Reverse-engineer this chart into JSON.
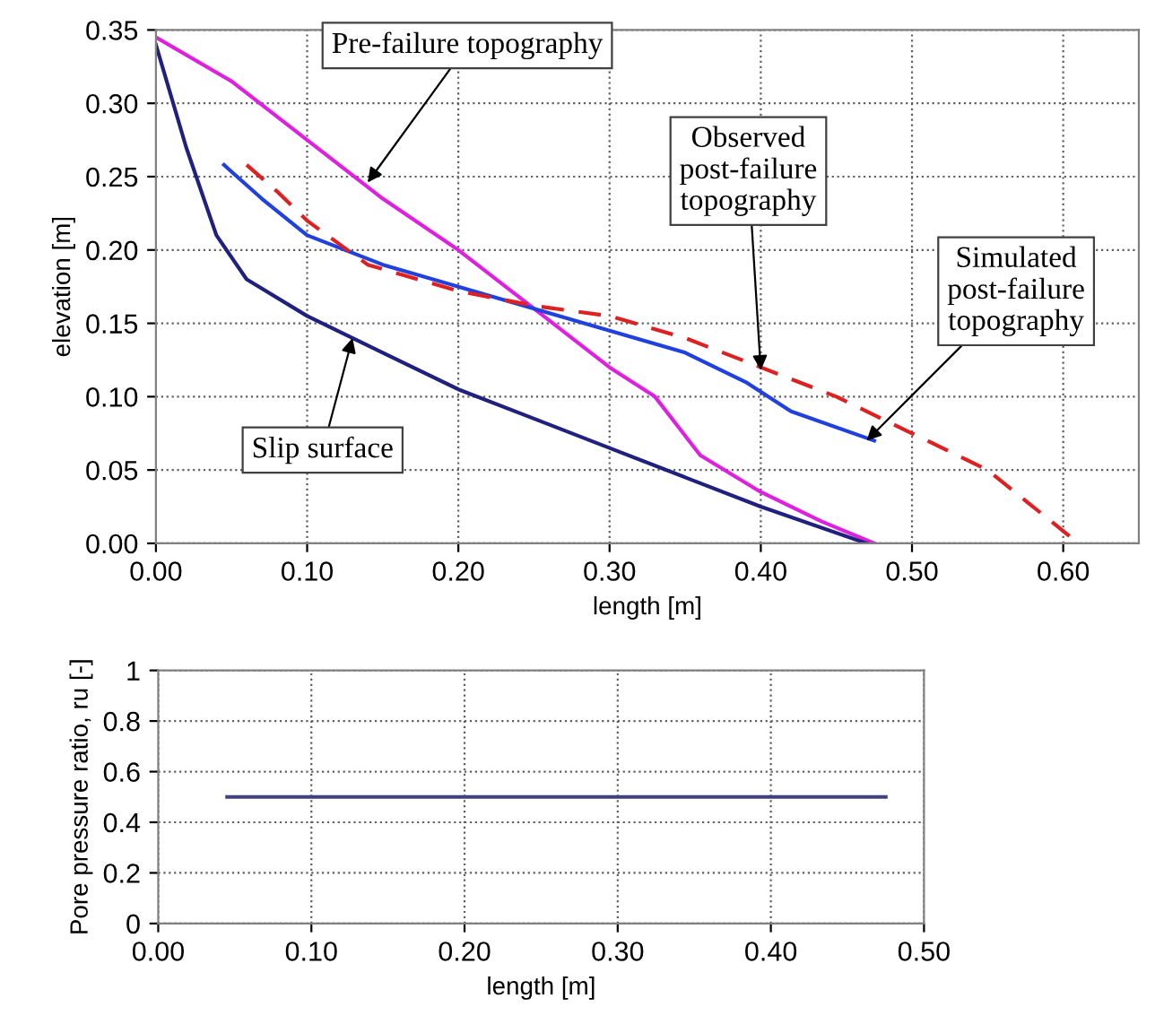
{
  "chart_data": [
    {
      "type": "line",
      "xlabel": "length [m]",
      "ylabel": "elevation [m]",
      "xlim": [
        0,
        0.65
      ],
      "ylim": [
        0,
        0.35
      ],
      "xticks": [
        {
          "value": 0,
          "label": "0.00"
        },
        {
          "value": 0.1,
          "label": "0.10"
        },
        {
          "value": 0.2,
          "label": "0.20"
        },
        {
          "value": 0.3,
          "label": "0.30"
        },
        {
          "value": 0.4,
          "label": "0.40"
        },
        {
          "value": 0.5,
          "label": "0.50"
        },
        {
          "value": 0.6,
          "label": "0.60"
        }
      ],
      "yticks": [
        {
          "value": 0,
          "label": "0.00"
        },
        0.05,
        {
          "value": 0.1,
          "label": "0.10"
        },
        0.15,
        {
          "value": 0.2,
          "label": "0.20"
        },
        0.25,
        {
          "value": 0.3,
          "label": "0.30"
        },
        0.35
      ],
      "grid": true,
      "marker": "none",
      "series": [
        {
          "color": "#e020e0",
          "line_style": "solid",
          "x": [
            0,
            0.05,
            0.1,
            0.15,
            0.2,
            0.25,
            0.3,
            0.33,
            0.36,
            0.4,
            0.44,
            0.475
          ],
          "values": [
            0.345,
            0.315,
            0.275,
            0.235,
            0.2,
            0.16,
            0.12,
            0.1,
            0.06,
            0.035,
            0.015,
            0
          ]
        },
        {
          "color": "#202080",
          "line_style": "solid",
          "x": [
            0,
            0.02,
            0.04,
            0.06,
            0.1,
            0.15,
            0.2,
            0.25,
            0.3,
            0.35,
            0.4,
            0.47
          ],
          "values": [
            0.34,
            0.27,
            0.21,
            0.18,
            0.155,
            0.13,
            0.105,
            0.085,
            0.065,
            0.045,
            0.025,
            0
          ]
        },
        {
          "color": "#2040e0",
          "line_style": "solid",
          "x": [
            0.045,
            0.07,
            0.1,
            0.15,
            0.2,
            0.25,
            0.3,
            0.35,
            0.39,
            0.42,
            0.475
          ],
          "values": [
            0.258,
            0.235,
            0.21,
            0.19,
            0.175,
            0.16,
            0.145,
            0.13,
            0.11,
            0.09,
            0.07
          ]
        },
        {
          "color": "#e02020",
          "line_style": "dashed",
          "x": [
            0.06,
            0.08,
            0.1,
            0.14,
            0.2,
            0.25,
            0.3,
            0.35,
            0.4,
            0.45,
            0.5,
            0.55,
            0.58,
            0.61
          ],
          "values": [
            0.258,
            0.24,
            0.22,
            0.19,
            0.172,
            0.162,
            0.155,
            0.14,
            0.12,
            0.1,
            0.075,
            0.05,
            0.025,
            0
          ]
        }
      ],
      "annotations": [
        {
          "text": "Pre-failure topography",
          "x": 0.14,
          "y": 0.246
        },
        {
          "text": "Observed\npost-failure\ntopography",
          "x": 0.4,
          "y": 0.118
        },
        {
          "text": "Simulated\npost-failure\ntopography",
          "x": 0.47,
          "y": 0.07
        },
        {
          "text": "Slip surface",
          "x": 0.13,
          "y": 0.14
        }
      ]
    },
    {
      "type": "line",
      "xlabel": "length [m]",
      "ylabel": "Pore pressure ratio, ru [-]",
      "xlim": [
        0,
        0.5
      ],
      "ylim": [
        0,
        1
      ],
      "xticks": [
        {
          "value": 0,
          "label": "0.00"
        },
        {
          "value": 0.1,
          "label": "0.10"
        },
        {
          "value": 0.2,
          "label": "0.20"
        },
        {
          "value": 0.3,
          "label": "0.30"
        },
        {
          "value": 0.4,
          "label": "0.40"
        },
        {
          "value": 0.5,
          "label": "0.50"
        }
      ],
      "yticks": [
        0,
        0.2,
        0.4,
        0.6,
        0.8,
        1
      ],
      "grid": true,
      "marker": "none",
      "series": [
        {
          "color": "#404080",
          "line_style": "solid",
          "x": [
            0.045,
            0.475
          ],
          "values": [
            0.5,
            0.5
          ]
        }
      ]
    }
  ]
}
